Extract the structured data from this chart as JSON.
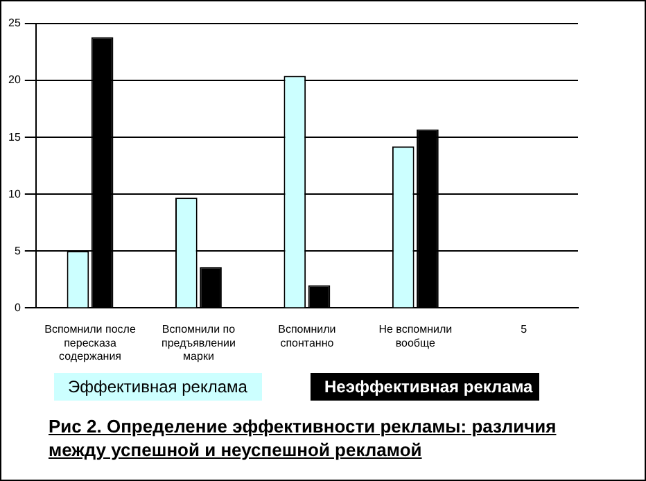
{
  "chart_data": {
    "type": "bar",
    "title": "Рис 2. Определение эффективности рекламы: различия между успешной и неуспешной рекламой",
    "categories": [
      "Вспомнили после пересказа содержания",
      "Вспомнили по предъявлении марки",
      "Вспомнили спонтанно",
      "Не вспомнили вообще",
      "5"
    ],
    "series": [
      {
        "name": "Эффективная реклама",
        "color": "#ccffff",
        "values": [
          5,
          9.7,
          20.4,
          14.2,
          null
        ]
      },
      {
        "name": "Неэффективная реклама",
        "color": "#000000",
        "values": [
          23.8,
          3.6,
          2.0,
          15.7,
          null
        ]
      }
    ],
    "ylim": [
      0,
      25
    ],
    "yticks": [
      0,
      5,
      10,
      15,
      20,
      25
    ],
    "grid": "y",
    "legend": "bottom"
  }
}
